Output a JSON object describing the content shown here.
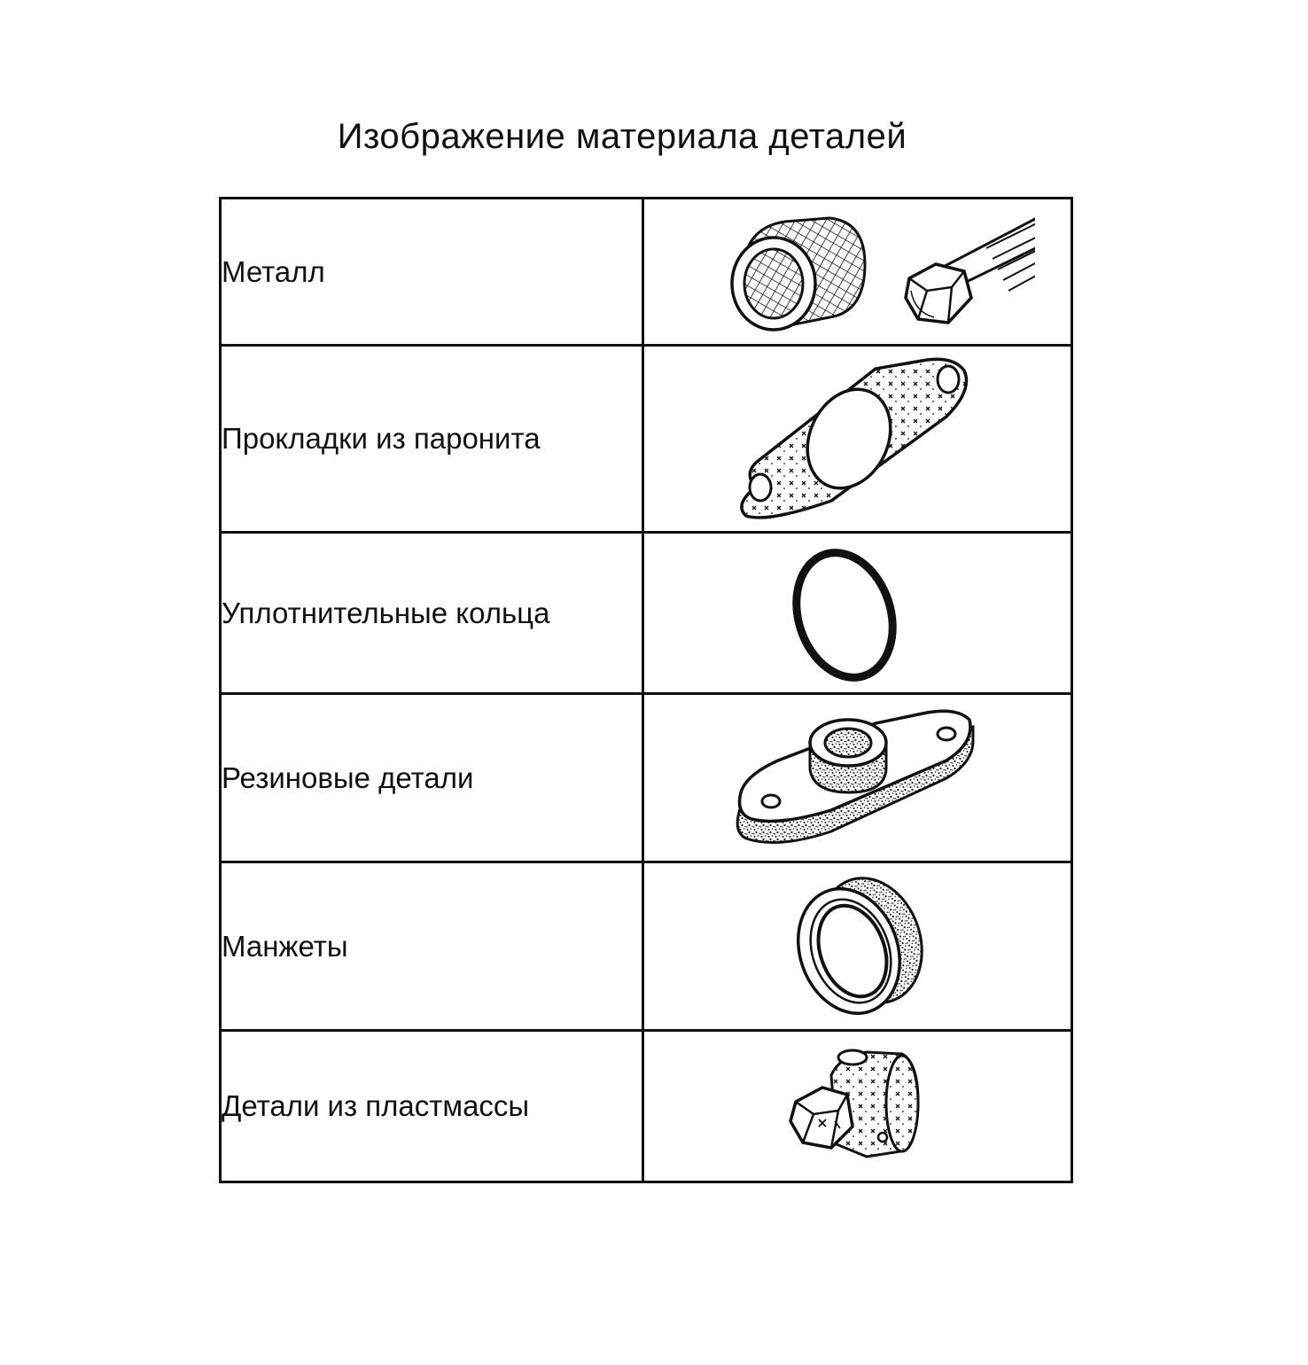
{
  "page_title": "Изображение материала деталей",
  "rows": [
    {
      "label": "Металл",
      "icon": "metal-bushing-and-bolt-icon"
    },
    {
      "label": "Прокладки из паронита",
      "icon": "paronite-gasket-icon"
    },
    {
      "label": "Уплотнительные кольца",
      "icon": "o-ring-icon"
    },
    {
      "label": "Резиновые детали",
      "icon": "rubber-flange-icon"
    },
    {
      "label": "Манжеты",
      "icon": "cuff-seal-icon"
    },
    {
      "label": "Детали из пластмассы",
      "icon": "plastic-part-icon"
    }
  ]
}
